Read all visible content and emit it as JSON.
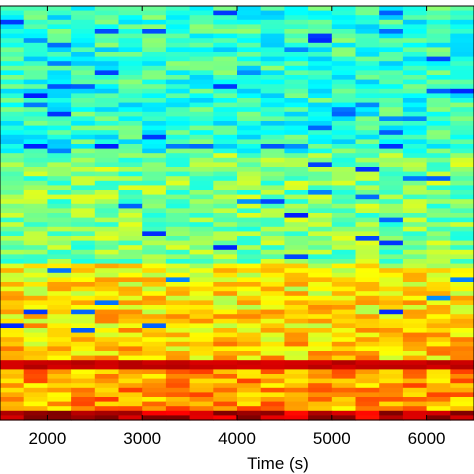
{
  "chart_data": {
    "type": "heatmap",
    "title": "",
    "xlabel": "Time (s)",
    "ylabel": "",
    "xlim": [
      1500,
      6500
    ],
    "x_ticks": [
      2000,
      3000,
      4000,
      5000,
      6000
    ],
    "x_tick_labels": [
      "2000",
      "3000",
      "4000",
      "5000",
      "6000"
    ],
    "colormap": "jet",
    "colors": {
      "low": "#2a5fc9",
      "mid_low": "#3fb6e0",
      "mid": "#6cc86a",
      "mid_high": "#e8e82a",
      "high": "#f07a1e",
      "max": "#e0241a"
    },
    "columns": 20,
    "rows": 90,
    "band_levels": {
      "top_region": 0.42,
      "middle_region": 0.5,
      "lower_region": 0.62,
      "strong_band": 0.93,
      "bottom_band": 0.95
    },
    "grid": false
  }
}
